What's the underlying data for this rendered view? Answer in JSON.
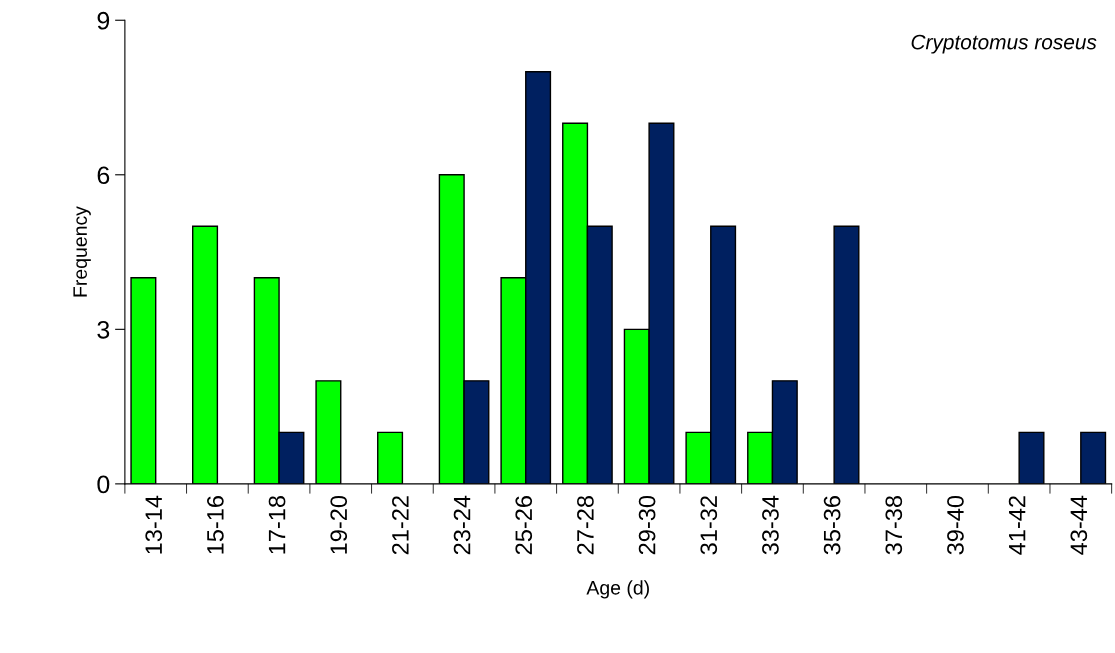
{
  "chart_data": {
    "type": "bar",
    "xlabel": "Age (d)",
    "ylabel": "Frequency",
    "annotations": [
      "Cryptotomus roseus"
    ],
    "categories": [
      "13-14",
      "15-16",
      "17-18",
      "19-20",
      "21-22",
      "23-24",
      "25-26",
      "27-28",
      "29-30",
      "31-32",
      "33-34",
      "35-36",
      "37-38",
      "39-40",
      "41-42",
      "43-44"
    ],
    "series": [
      {
        "color": "#00ff00",
        "values": [
          4,
          5,
          4,
          2,
          1,
          6,
          4,
          7,
          3,
          1,
          1,
          null,
          null,
          null,
          null,
          null
        ]
      },
      {
        "color": "#002060",
        "values": [
          null,
          null,
          1,
          null,
          null,
          2,
          8,
          5,
          7,
          5,
          2,
          5,
          null,
          null,
          1,
          1
        ]
      }
    ],
    "ylim": [
      0,
      9
    ],
    "yticks": [
      0,
      3,
      6,
      9
    ],
    "grid": false,
    "legend": false
  }
}
